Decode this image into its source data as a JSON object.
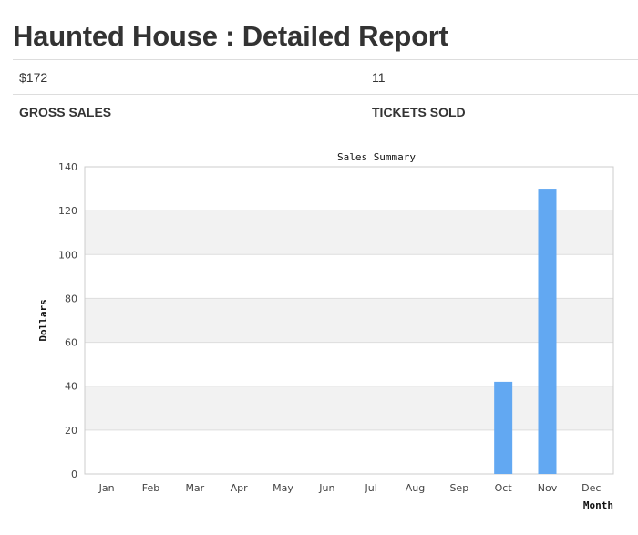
{
  "header": {
    "title": "Haunted House : Detailed Report"
  },
  "summary": {
    "gross_sales_value": "$172",
    "tickets_sold_value": "11",
    "gross_sales_label": "GROSS SALES",
    "tickets_sold_label": "TICKETS SOLD"
  },
  "chart_data": {
    "type": "bar",
    "title": "Sales Summary",
    "xlabel": "Month",
    "ylabel": "Dollars",
    "categories": [
      "Jan",
      "Feb",
      "Mar",
      "Apr",
      "May",
      "Jun",
      "Jul",
      "Aug",
      "Sep",
      "Oct",
      "Nov",
      "Dec"
    ],
    "values": [
      0,
      0,
      0,
      0,
      0,
      0,
      0,
      0,
      0,
      42,
      130,
      0
    ],
    "ylim": [
      0,
      140
    ],
    "yticks": [
      0,
      20,
      40,
      60,
      80,
      100,
      120,
      140
    ],
    "grid": true,
    "bar_color": "#62a8f2",
    "band_color": "#f2f2f2"
  }
}
